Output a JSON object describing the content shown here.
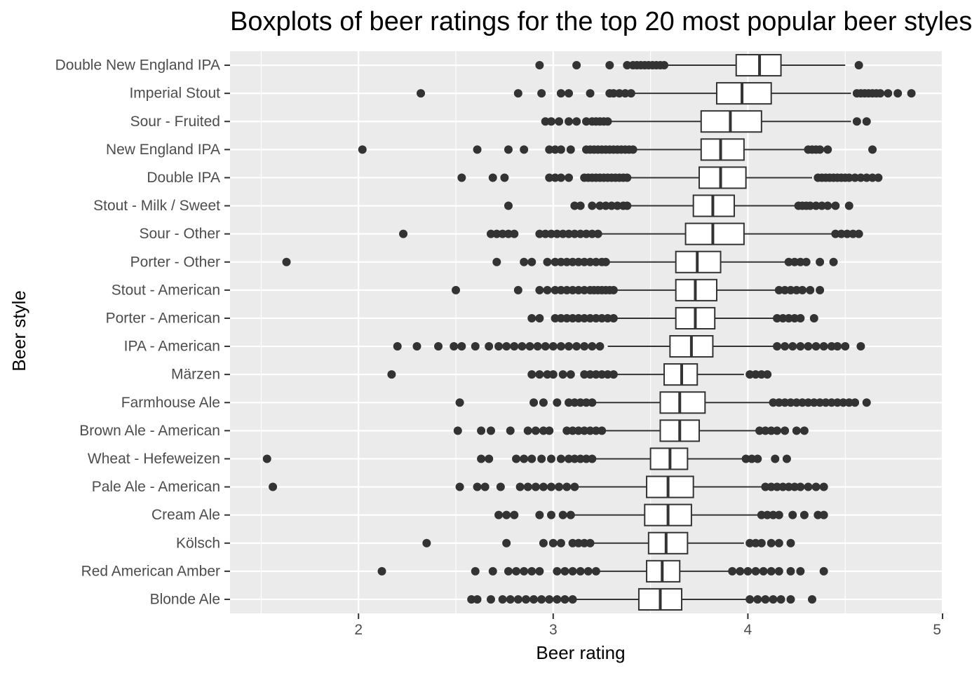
{
  "chart_data": {
    "type": "boxplot",
    "title": "Boxplots of beer ratings for the top 20 most popular beer styles",
    "xlabel": "Beer rating",
    "ylabel": "Beer style",
    "xlim": [
      1.34,
      5.0
    ],
    "xticks": [
      2,
      3,
      4,
      5
    ],
    "grid": true,
    "legend": "none",
    "colors": {
      "panel": "#ebebeb",
      "grid_major": "#ffffff",
      "box_fill": "#ffffff",
      "box_line": "#333333",
      "outlier": "#333333"
    },
    "categories": [
      "Double New England IPA",
      "Imperial Stout",
      "Sour - Fruited",
      "New England IPA",
      "Double IPA",
      "Stout - Milk / Sweet",
      "Sour - Other",
      "Porter - Other",
      "Stout - American",
      "Porter - American",
      "IPA - American",
      "Märzen",
      "Farmhouse Ale",
      "Brown Ale - American",
      "Wheat  - Hefeweizen",
      "Pale Ale - American",
      "Cream Ale",
      "Kölsch",
      "Red American Amber",
      "Blonde Ale"
    ],
    "boxes": [
      {
        "style": "Double New England IPA",
        "whisker_low": 3.59,
        "q1": 3.94,
        "median": 4.06,
        "q3": 4.17,
        "whisker_high": 4.5,
        "outliers": [
          2.93,
          3.12,
          3.29,
          3.38,
          3.41,
          3.43,
          3.45,
          3.47,
          3.49,
          3.51,
          3.53,
          3.55,
          3.57,
          4.57
        ]
      },
      {
        "style": "Imperial Stout",
        "whisker_low": 3.42,
        "q1": 3.84,
        "median": 3.97,
        "q3": 4.12,
        "whisker_high": 4.53,
        "outliers": [
          2.32,
          2.82,
          2.94,
          3.04,
          3.08,
          3.19,
          3.29,
          3.31,
          3.34,
          3.37,
          3.4,
          4.56,
          4.58,
          4.6,
          4.62,
          4.64,
          4.66,
          4.68,
          4.72,
          4.77,
          4.84
        ]
      },
      {
        "style": "Sour - Fruited",
        "whisker_low": 3.3,
        "q1": 3.76,
        "median": 3.91,
        "q3": 4.07,
        "whisker_high": 4.53,
        "outliers": [
          2.96,
          2.99,
          3.03,
          3.08,
          3.12,
          3.17,
          3.2,
          3.22,
          3.24,
          3.26,
          3.28,
          4.56,
          4.61
        ]
      },
      {
        "style": "New England IPA",
        "whisker_low": 3.43,
        "q1": 3.76,
        "median": 3.86,
        "q3": 3.98,
        "whisker_high": 4.29,
        "outliers": [
          2.02,
          2.61,
          2.77,
          2.85,
          2.98,
          3.01,
          3.04,
          3.09,
          3.17,
          3.19,
          3.21,
          3.23,
          3.25,
          3.27,
          3.29,
          3.31,
          3.33,
          3.35,
          3.37,
          3.39,
          3.41,
          4.31,
          4.33,
          4.35,
          4.37,
          4.41,
          4.64
        ]
      },
      {
        "style": "Double IPA",
        "whisker_low": 3.39,
        "q1": 3.75,
        "median": 3.86,
        "q3": 3.99,
        "whisker_high": 4.33,
        "outliers": [
          2.53,
          2.69,
          2.75,
          2.98,
          3.01,
          3.04,
          3.08,
          3.16,
          3.18,
          3.2,
          3.22,
          3.24,
          3.26,
          3.28,
          3.3,
          3.32,
          3.34,
          3.36,
          3.38,
          4.36,
          4.38,
          4.4,
          4.42,
          4.44,
          4.46,
          4.48,
          4.5,
          4.52,
          4.55,
          4.58,
          4.61,
          4.64,
          4.67
        ]
      },
      {
        "style": "Stout - Milk / Sweet",
        "whisker_low": 3.4,
        "q1": 3.72,
        "median": 3.82,
        "q3": 3.93,
        "whisker_high": 4.24,
        "outliers": [
          2.77,
          3.11,
          3.14,
          3.2,
          3.24,
          3.27,
          3.3,
          3.33,
          3.36,
          3.38,
          4.26,
          4.28,
          4.3,
          4.32,
          4.35,
          4.38,
          4.41,
          4.45,
          4.52
        ]
      },
      {
        "style": "Sour - Other",
        "whisker_low": 3.24,
        "q1": 3.68,
        "median": 3.82,
        "q3": 3.98,
        "whisker_high": 4.43,
        "outliers": [
          2.23,
          2.68,
          2.71,
          2.74,
          2.77,
          2.8,
          2.93,
          2.96,
          2.99,
          3.02,
          3.05,
          3.08,
          3.11,
          3.14,
          3.17,
          3.2,
          3.23,
          4.45,
          4.48,
          4.51,
          4.54,
          4.57
        ]
      },
      {
        "style": "Porter - Other",
        "whisker_low": 3.28,
        "q1": 3.63,
        "median": 3.74,
        "q3": 3.86,
        "whisker_high": 4.19,
        "outliers": [
          1.63,
          2.71,
          2.85,
          2.89,
          2.97,
          3.01,
          3.04,
          3.07,
          3.1,
          3.13,
          3.16,
          3.19,
          3.22,
          3.25,
          3.27,
          4.21,
          4.24,
          4.27,
          4.3,
          4.37,
          4.44
        ]
      },
      {
        "style": "Stout - American",
        "whisker_low": 3.33,
        "q1": 3.63,
        "median": 3.73,
        "q3": 3.84,
        "whisker_high": 4.14,
        "outliers": [
          2.5,
          2.82,
          2.93,
          2.97,
          3.01,
          3.04,
          3.07,
          3.1,
          3.13,
          3.16,
          3.19,
          3.21,
          3.23,
          3.25,
          3.27,
          3.29,
          3.31,
          4.16,
          4.19,
          4.22,
          4.25,
          4.28,
          4.32,
          4.37
        ]
      },
      {
        "style": "Porter - American",
        "whisker_low": 3.33,
        "q1": 3.63,
        "median": 3.73,
        "q3": 3.83,
        "whisker_high": 4.13,
        "outliers": [
          2.89,
          2.93,
          3.01,
          3.04,
          3.07,
          3.1,
          3.13,
          3.16,
          3.19,
          3.22,
          3.25,
          3.28,
          3.31,
          4.15,
          4.18,
          4.21,
          4.24,
          4.27,
          4.34
        ]
      },
      {
        "style": "IPA - American",
        "whisker_low": 3.28,
        "q1": 3.6,
        "median": 3.71,
        "q3": 3.82,
        "whisker_high": 4.13,
        "outliers": [
          2.2,
          2.3,
          2.41,
          2.49,
          2.53,
          2.6,
          2.67,
          2.72,
          2.76,
          2.8,
          2.84,
          2.88,
          2.92,
          2.96,
          3.0,
          3.04,
          3.08,
          3.12,
          3.16,
          3.2,
          3.24,
          4.15,
          4.19,
          4.23,
          4.27,
          4.31,
          4.35,
          4.39,
          4.43,
          4.46,
          4.5,
          4.58
        ]
      },
      {
        "style": "Märzen",
        "whisker_low": 3.33,
        "q1": 3.57,
        "median": 3.66,
        "q3": 3.74,
        "whisker_high": 3.98,
        "outliers": [
          2.17,
          2.89,
          2.93,
          2.97,
          3.0,
          3.05,
          3.09,
          3.16,
          3.19,
          3.22,
          3.25,
          3.28,
          3.31,
          4.01,
          4.04,
          4.07,
          4.1
        ]
      },
      {
        "style": "Farmhouse Ale",
        "whisker_low": 3.22,
        "q1": 3.55,
        "median": 3.65,
        "q3": 3.78,
        "whisker_high": 4.11,
        "outliers": [
          2.52,
          2.9,
          2.95,
          3.02,
          3.08,
          3.11,
          3.14,
          3.17,
          3.2,
          4.13,
          4.16,
          4.19,
          4.22,
          4.25,
          4.28,
          4.31,
          4.34,
          4.37,
          4.4,
          4.43,
          4.46,
          4.49,
          4.52,
          4.55,
          4.61
        ]
      },
      {
        "style": "Brown Ale - American",
        "whisker_low": 3.25,
        "q1": 3.55,
        "median": 3.65,
        "q3": 3.75,
        "whisker_high": 4.04,
        "outliers": [
          2.51,
          2.63,
          2.68,
          2.78,
          2.87,
          2.91,
          2.95,
          2.98,
          3.07,
          3.1,
          3.13,
          3.16,
          3.19,
          3.22,
          3.25,
          4.06,
          4.09,
          4.12,
          4.15,
          4.19,
          4.25,
          4.29
        ]
      },
      {
        "style": "Wheat  - Hefeweizen",
        "whisker_low": 3.22,
        "q1": 3.5,
        "median": 3.6,
        "q3": 3.69,
        "whisker_high": 3.97,
        "outliers": [
          1.53,
          2.63,
          2.67,
          2.81,
          2.85,
          2.89,
          2.94,
          2.99,
          3.04,
          3.08,
          3.11,
          3.14,
          3.17,
          3.2,
          3.99,
          4.02,
          4.05,
          4.14,
          4.2
        ]
      },
      {
        "style": "Pale Ale - American",
        "whisker_low": 3.13,
        "q1": 3.48,
        "median": 3.59,
        "q3": 3.72,
        "whisker_high": 4.07,
        "outliers": [
          1.56,
          2.52,
          2.61,
          2.65,
          2.73,
          2.83,
          2.87,
          2.91,
          2.95,
          2.99,
          3.03,
          3.07,
          3.11,
          4.09,
          4.12,
          4.15,
          4.18,
          4.21,
          4.24,
          4.27,
          4.31,
          4.35,
          4.39
        ]
      },
      {
        "style": "Cream Ale",
        "whisker_low": 3.11,
        "q1": 3.47,
        "median": 3.59,
        "q3": 3.71,
        "whisker_high": 4.05,
        "outliers": [
          2.72,
          2.76,
          2.8,
          2.93,
          2.99,
          3.05,
          3.09,
          4.07,
          4.1,
          4.13,
          4.16,
          4.23,
          4.29,
          4.36,
          4.39
        ]
      },
      {
        "style": "Kölsch",
        "whisker_low": 3.19,
        "q1": 3.49,
        "median": 3.58,
        "q3": 3.69,
        "whisker_high": 3.98,
        "outliers": [
          2.35,
          2.76,
          2.95,
          3.0,
          3.04,
          3.1,
          3.13,
          3.16,
          3.19,
          4.01,
          4.04,
          4.07,
          4.12,
          4.16,
          4.22
        ]
      },
      {
        "style": "Red American Amber",
        "whisker_low": 3.22,
        "q1": 3.48,
        "median": 3.56,
        "q3": 3.65,
        "whisker_high": 3.9,
        "outliers": [
          2.12,
          2.6,
          2.69,
          2.77,
          2.81,
          2.85,
          2.89,
          2.93,
          3.02,
          3.06,
          3.1,
          3.14,
          3.18,
          3.22,
          3.92,
          3.96,
          4.0,
          4.04,
          4.08,
          4.12,
          4.16,
          4.22,
          4.27,
          4.39
        ]
      },
      {
        "style": "Blonde Ale",
        "whisker_low": 3.1,
        "q1": 3.44,
        "median": 3.55,
        "q3": 3.66,
        "whisker_high": 3.99,
        "outliers": [
          2.58,
          2.61,
          2.68,
          2.74,
          2.78,
          2.82,
          2.86,
          2.9,
          2.94,
          2.98,
          3.02,
          3.06,
          3.1,
          4.01,
          4.05,
          4.09,
          4.13,
          4.17,
          4.22,
          4.33
        ]
      }
    ]
  }
}
